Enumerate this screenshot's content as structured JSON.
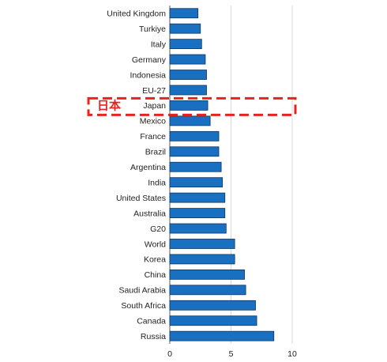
{
  "chart_data": {
    "type": "bar",
    "orientation": "horizontal",
    "categories": [
      "United Kingdom",
      "Turkiye",
      "Italy",
      "Germany",
      "Indonesia",
      "EU-27",
      "Japan",
      "Mexico",
      "France",
      "Brazil",
      "Argentina",
      "India",
      "United States",
      "Australia",
      "G20",
      "World",
      "Korea",
      "China",
      "Saudi Arabia",
      "South Africa",
      "Canada",
      "Russia"
    ],
    "values": [
      2.3,
      2.5,
      2.6,
      2.9,
      3.0,
      3.0,
      3.1,
      3.3,
      4.0,
      4.0,
      4.2,
      4.3,
      4.5,
      4.5,
      4.6,
      5.3,
      5.3,
      6.1,
      6.2,
      7.0,
      7.1,
      8.5
    ],
    "title": "",
    "xlabel": "",
    "ylabel": "",
    "xlim": [
      0,
      10
    ],
    "xticks": [
      0,
      5,
      10
    ],
    "grid": "vertical",
    "highlight_category": "Japan",
    "annotation": {
      "text": "日本",
      "color": "#e8231c"
    },
    "bar_color": "#1a70c0",
    "bar_edge_color": "#0c3566"
  }
}
